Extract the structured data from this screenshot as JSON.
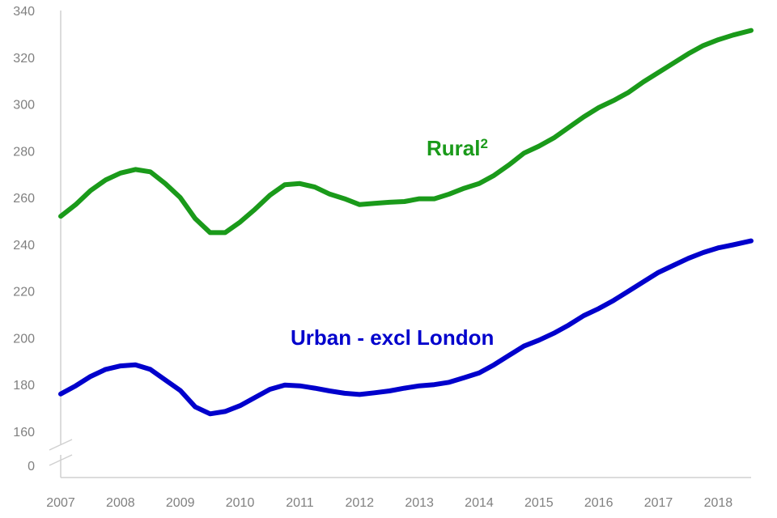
{
  "chart_data": {
    "type": "line",
    "title": "",
    "xlabel": "",
    "ylabel": "",
    "axis_break": true,
    "y_ticks": [
      0,
      160,
      180,
      200,
      220,
      240,
      260,
      280,
      300,
      320,
      340
    ],
    "x_ticks": [
      "2007",
      "2008",
      "2009",
      "2010",
      "2011",
      "2012",
      "2013",
      "2014",
      "2015",
      "2016",
      "2017",
      "2018"
    ],
    "xlim": [
      2007.0,
      2018.55
    ],
    "ylim": [
      160,
      340
    ],
    "grid": false,
    "legend": "inline labels",
    "series": [
      {
        "name": "Rural",
        "label_superscript": "2",
        "color": "#1a9a1a",
        "x": [
          2007.0,
          2007.25,
          2007.5,
          2007.75,
          2008.0,
          2008.25,
          2008.5,
          2008.75,
          2009.0,
          2009.25,
          2009.5,
          2009.75,
          2010.0,
          2010.25,
          2010.5,
          2010.75,
          2011.0,
          2011.25,
          2011.5,
          2011.75,
          2012.0,
          2012.25,
          2012.5,
          2012.75,
          2013.0,
          2013.25,
          2013.5,
          2013.75,
          2014.0,
          2014.25,
          2014.5,
          2014.75,
          2015.0,
          2015.25,
          2015.5,
          2015.75,
          2016.0,
          2016.25,
          2016.5,
          2016.75,
          2017.0,
          2017.25,
          2017.5,
          2017.75,
          2018.0,
          2018.25,
          2018.55
        ],
        "values": [
          252,
          257,
          263,
          267.5,
          270.5,
          272,
          271,
          266,
          260,
          251,
          245,
          245,
          249.5,
          255,
          261,
          265.5,
          266,
          264.5,
          261.5,
          259.5,
          257,
          257.5,
          258,
          258.3,
          259.5,
          259.5,
          261.5,
          264,
          266,
          269.5,
          274,
          279,
          282,
          285.5,
          290,
          294.5,
          298.5,
          301.5,
          305,
          309.5,
          313.5,
          317.5,
          321.5,
          325,
          327.5,
          329.5,
          331.5
        ]
      },
      {
        "name": "Urban - excl London",
        "color": "#0000cc",
        "x": [
          2007.0,
          2007.25,
          2007.5,
          2007.75,
          2008.0,
          2008.25,
          2008.5,
          2008.75,
          2009.0,
          2009.25,
          2009.5,
          2009.75,
          2010.0,
          2010.25,
          2010.5,
          2010.75,
          2011.0,
          2011.25,
          2011.5,
          2011.75,
          2012.0,
          2012.25,
          2012.5,
          2012.75,
          2013.0,
          2013.25,
          2013.5,
          2013.75,
          2014.0,
          2014.25,
          2014.5,
          2014.75,
          2015.0,
          2015.25,
          2015.5,
          2015.75,
          2016.0,
          2016.25,
          2016.5,
          2016.75,
          2017.0,
          2017.25,
          2017.5,
          2017.75,
          2018.0,
          2018.25,
          2018.55
        ],
        "values": [
          176,
          179.5,
          183.5,
          186.5,
          188,
          188.5,
          186.5,
          182,
          177.5,
          170.5,
          167.5,
          168.5,
          171,
          174.5,
          178,
          179.8,
          179.5,
          178.5,
          177.3,
          176.3,
          175.8,
          176.5,
          177.3,
          178.5,
          179.5,
          180,
          181,
          183,
          185,
          188.5,
          192.5,
          196.5,
          199,
          202,
          205.5,
          209.5,
          212.5,
          216,
          220,
          224,
          228,
          231,
          234,
          236.5,
          238.5,
          239.8,
          241.5
        ]
      }
    ]
  }
}
